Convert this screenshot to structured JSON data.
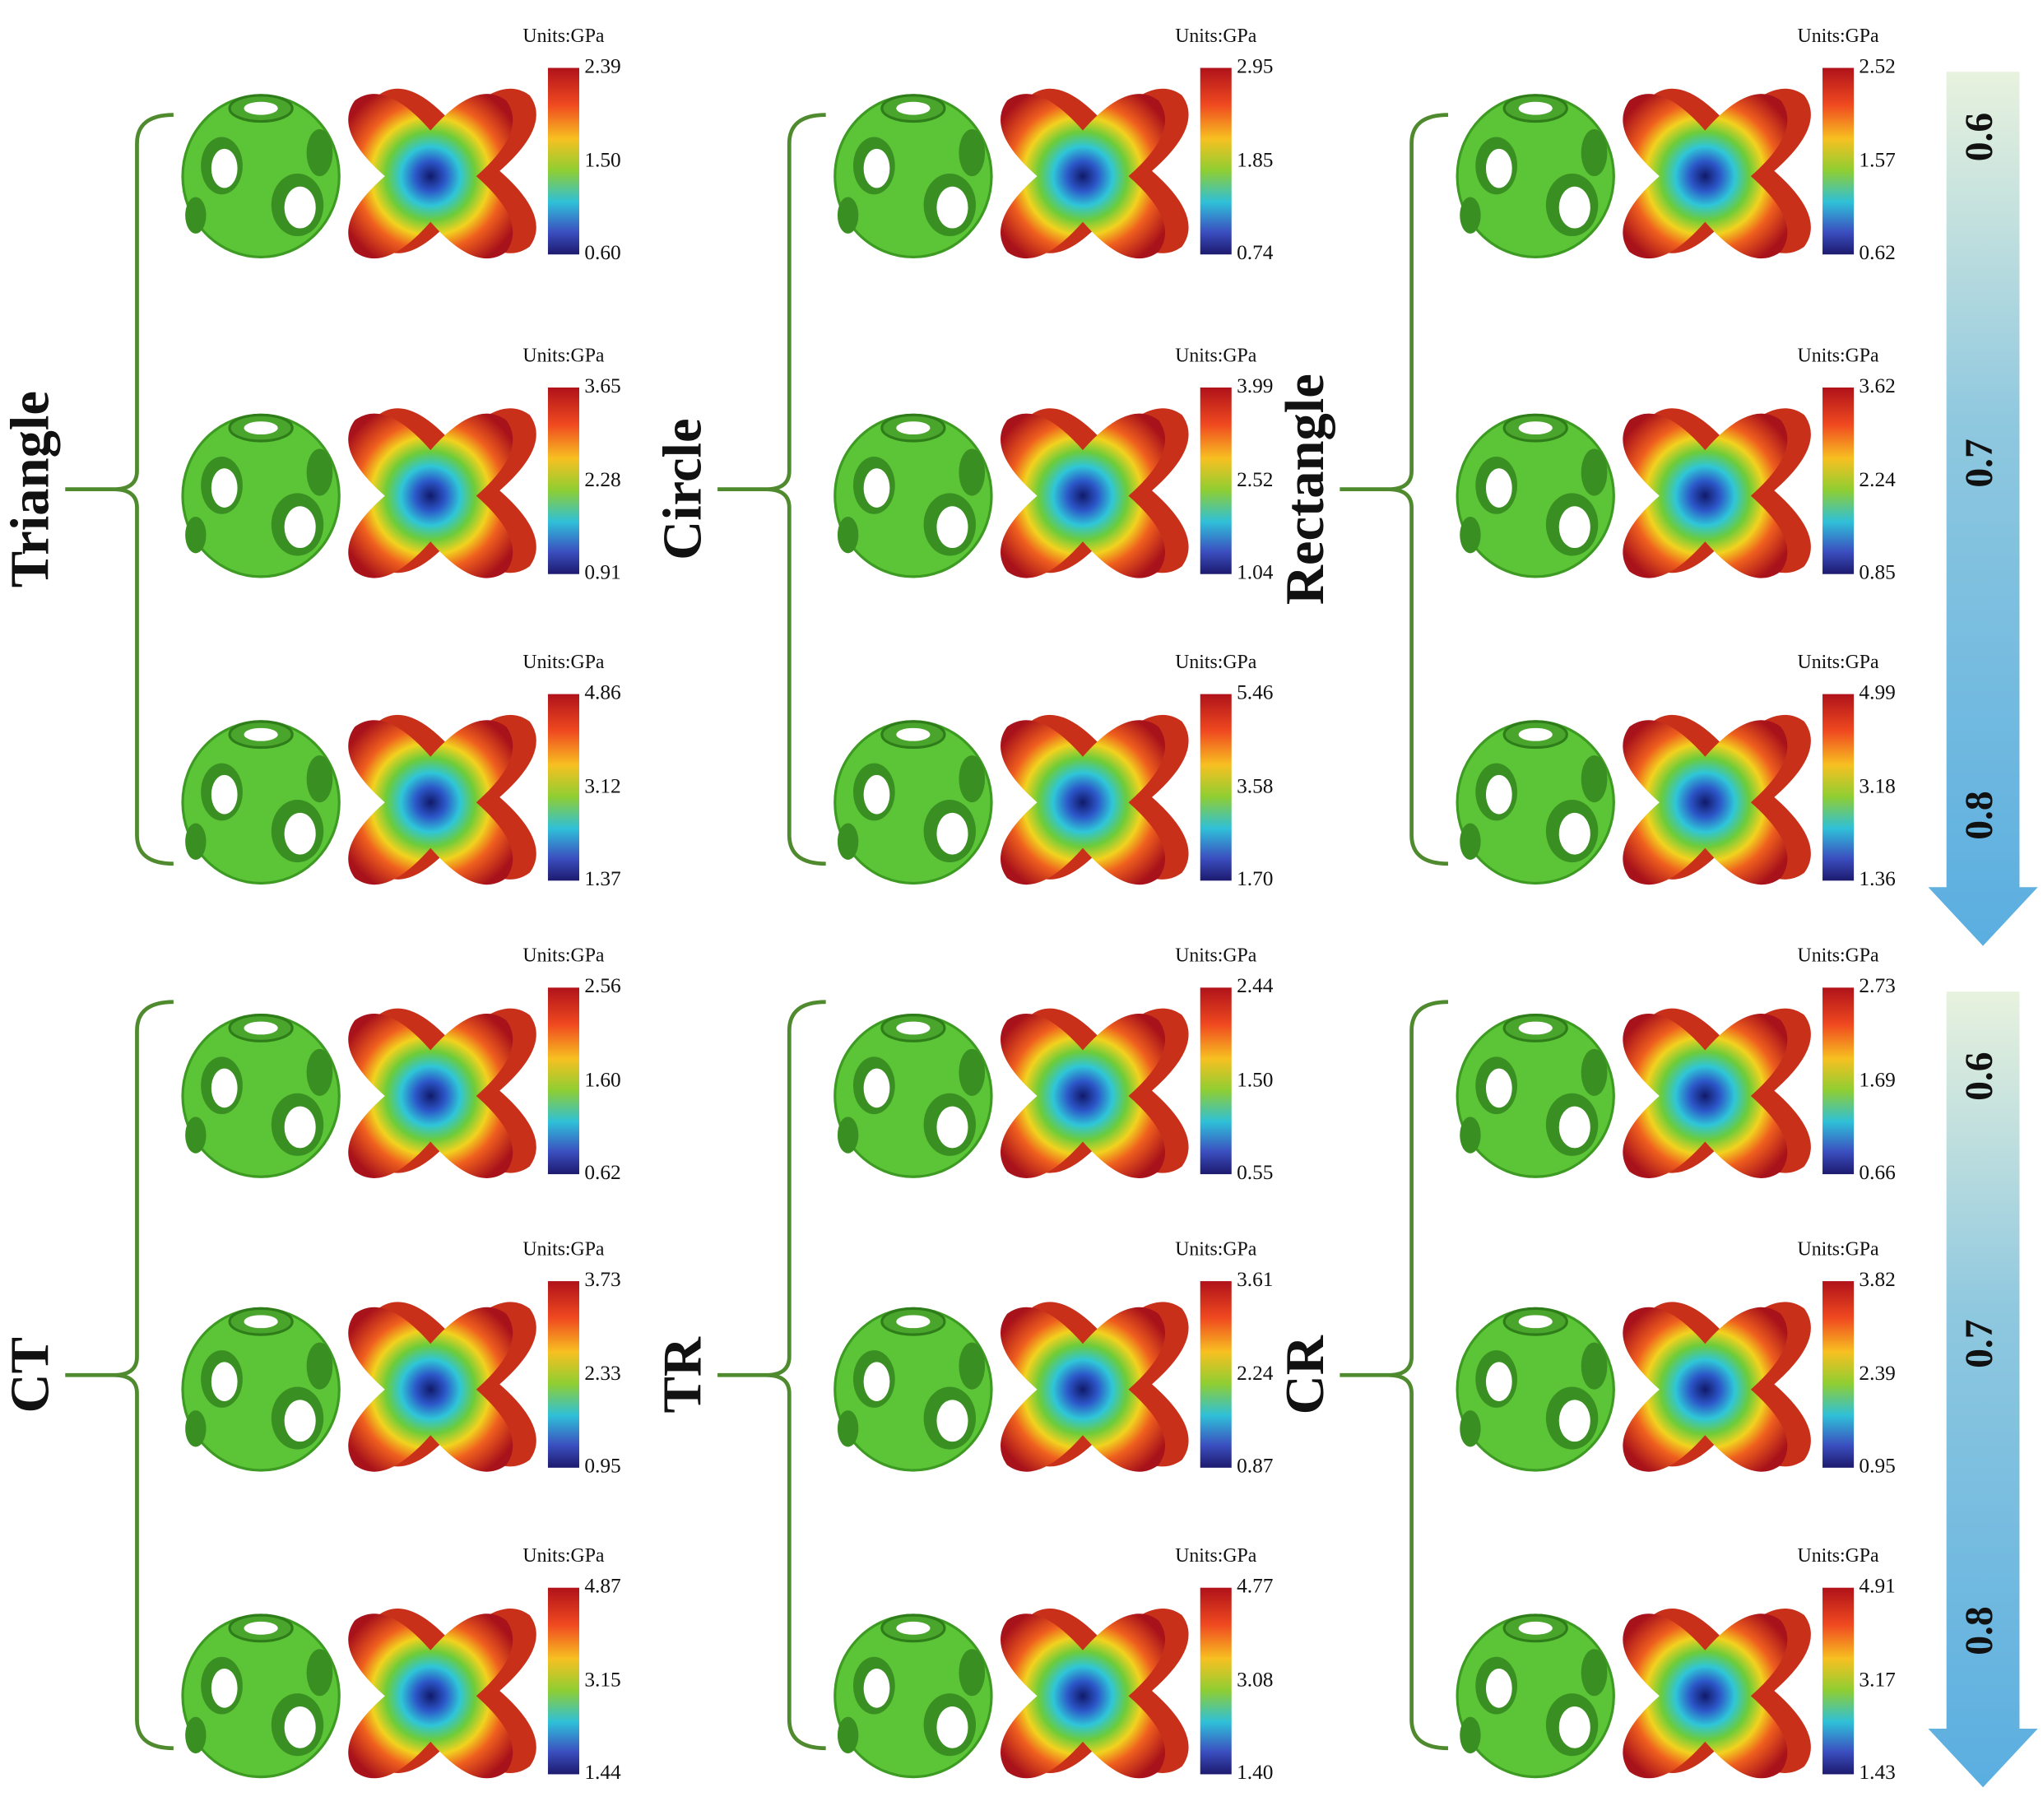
{
  "groups": [
    {
      "name": "Triangle",
      "cells": [
        {
          "units": "Units:GPa",
          "ticks": [
            "2.39",
            "1.50",
            "0.60"
          ]
        },
        {
          "units": "Units:GPa",
          "ticks": [
            "3.65",
            "2.28",
            "0.91"
          ]
        },
        {
          "units": "Units:GPa",
          "ticks": [
            "4.86",
            "3.12",
            "1.37"
          ]
        }
      ]
    },
    {
      "name": "Circle",
      "cells": [
        {
          "units": "Units:GPa",
          "ticks": [
            "2.95",
            "1.85",
            "0.74"
          ]
        },
        {
          "units": "Units:GPa",
          "ticks": [
            "3.99",
            "2.52",
            "1.04"
          ]
        },
        {
          "units": "Units:GPa",
          "ticks": [
            "5.46",
            "3.58",
            "1.70"
          ]
        }
      ]
    },
    {
      "name": "Rectangle",
      "cells": [
        {
          "units": "Units:GPa",
          "ticks": [
            "2.52",
            "1.57",
            "0.62"
          ]
        },
        {
          "units": "Units:GPa",
          "ticks": [
            "3.62",
            "2.24",
            "0.85"
          ]
        },
        {
          "units": "Units:GPa",
          "ticks": [
            "4.99",
            "3.18",
            "1.36"
          ]
        }
      ]
    },
    {
      "name": "CT",
      "cells": [
        {
          "units": "Units:GPa",
          "ticks": [
            "2.56",
            "1.60",
            "0.62"
          ]
        },
        {
          "units": "Units:GPa",
          "ticks": [
            "3.73",
            "2.33",
            "0.95"
          ]
        },
        {
          "units": "Units:GPa",
          "ticks": [
            "4.87",
            "3.15",
            "1.44"
          ]
        }
      ]
    },
    {
      "name": "TR",
      "cells": [
        {
          "units": "Units:GPa",
          "ticks": [
            "2.44",
            "1.50",
            "0.55"
          ]
        },
        {
          "units": "Units:GPa",
          "ticks": [
            "3.61",
            "2.24",
            "0.87"
          ]
        },
        {
          "units": "Units:GPa",
          "ticks": [
            "4.77",
            "3.08",
            "1.40"
          ]
        }
      ]
    },
    {
      "name": "CR",
      "cells": [
        {
          "units": "Units:GPa",
          "ticks": [
            "2.73",
            "1.69",
            "0.66"
          ]
        },
        {
          "units": "Units:GPa",
          "ticks": [
            "3.82",
            "2.39",
            "0.95"
          ]
        },
        {
          "units": "Units:GPa",
          "ticks": [
            "4.91",
            "3.17",
            "1.43"
          ]
        }
      ]
    }
  ],
  "arrows": [
    {
      "labels": [
        "0.6",
        "0.7",
        "0.8"
      ]
    },
    {
      "labels": [
        "0.6",
        "0.7",
        "0.8"
      ]
    }
  ]
}
